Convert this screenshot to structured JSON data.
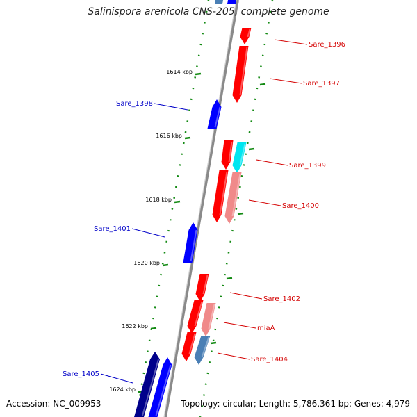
{
  "header": {
    "title": "Salinispora arenicola CNS-205, complete genome"
  },
  "footer": {
    "accession": "Accession: NC_009953",
    "summary": "Topology: circular; Length: 5,786,361 bp; Genes: 4,979"
  },
  "colors": {
    "backbone": "#8a8a8a",
    "tick": "#138a13",
    "forward_label": "#d40000",
    "reverse_label": "#0000c8",
    "gene_forward": "#ff0000",
    "gene_forward_light": "#f08a8a",
    "gene_cyan": "#00e6f0",
    "gene_steel": "#4a7fb5",
    "gene_reverse": "#0000ff",
    "gene_navy": "#00008b"
  },
  "scale_labels": [
    "1614 kbp",
    "1616 kbp",
    "1618 kbp",
    "1620 kbp",
    "1622 kbp",
    "1624 kbp"
  ],
  "genes": [
    {
      "label": "Sare_1396",
      "strand": "forward"
    },
    {
      "label": "Sare_1397",
      "strand": "forward"
    },
    {
      "label": "Sare_1398",
      "strand": "reverse"
    },
    {
      "label": "Sare_1399",
      "strand": "forward"
    },
    {
      "label": "Sare_1400",
      "strand": "forward"
    },
    {
      "label": "Sare_1401",
      "strand": "reverse"
    },
    {
      "label": "Sare_1402",
      "strand": "forward"
    },
    {
      "label": "miaA",
      "strand": "forward"
    },
    {
      "label": "Sare_1404",
      "strand": "forward"
    },
    {
      "label": "Sare_1405",
      "strand": "reverse"
    }
  ]
}
